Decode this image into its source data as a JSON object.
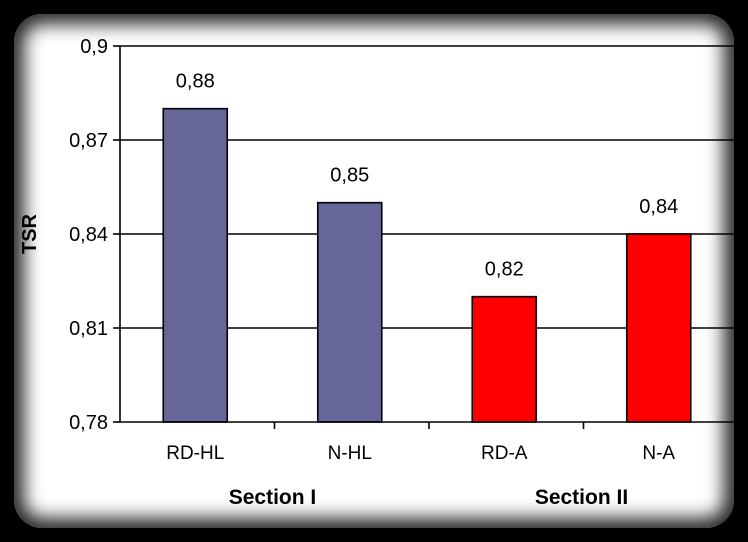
{
  "chart_data": {
    "type": "bar",
    "categories": [
      "RD-HL",
      "N-HL",
      "RD-A",
      "N-A"
    ],
    "values": [
      0.88,
      0.85,
      0.82,
      0.84
    ],
    "value_labels": [
      "0,88",
      "0,85",
      "0,82",
      "0,84"
    ],
    "bar_colors": [
      "#66669a",
      "#66669a",
      "#ff0000",
      "#ff0000"
    ],
    "ylabel": "TSR",
    "xlabel": "",
    "ylim": [
      0.78,
      0.9
    ],
    "y_ticks": [
      0.78,
      0.81,
      0.84,
      0.87,
      0.9
    ],
    "y_tick_labels": [
      "0,78",
      "0,81",
      "0,84",
      "0,87",
      "0,9"
    ],
    "groups": [
      {
        "label": "Section I",
        "categories": [
          "RD-HL",
          "N-HL"
        ]
      },
      {
        "label": "Section II",
        "categories": [
          "RD-A",
          "N-A"
        ]
      }
    ],
    "grid": true,
    "legend": false
  }
}
